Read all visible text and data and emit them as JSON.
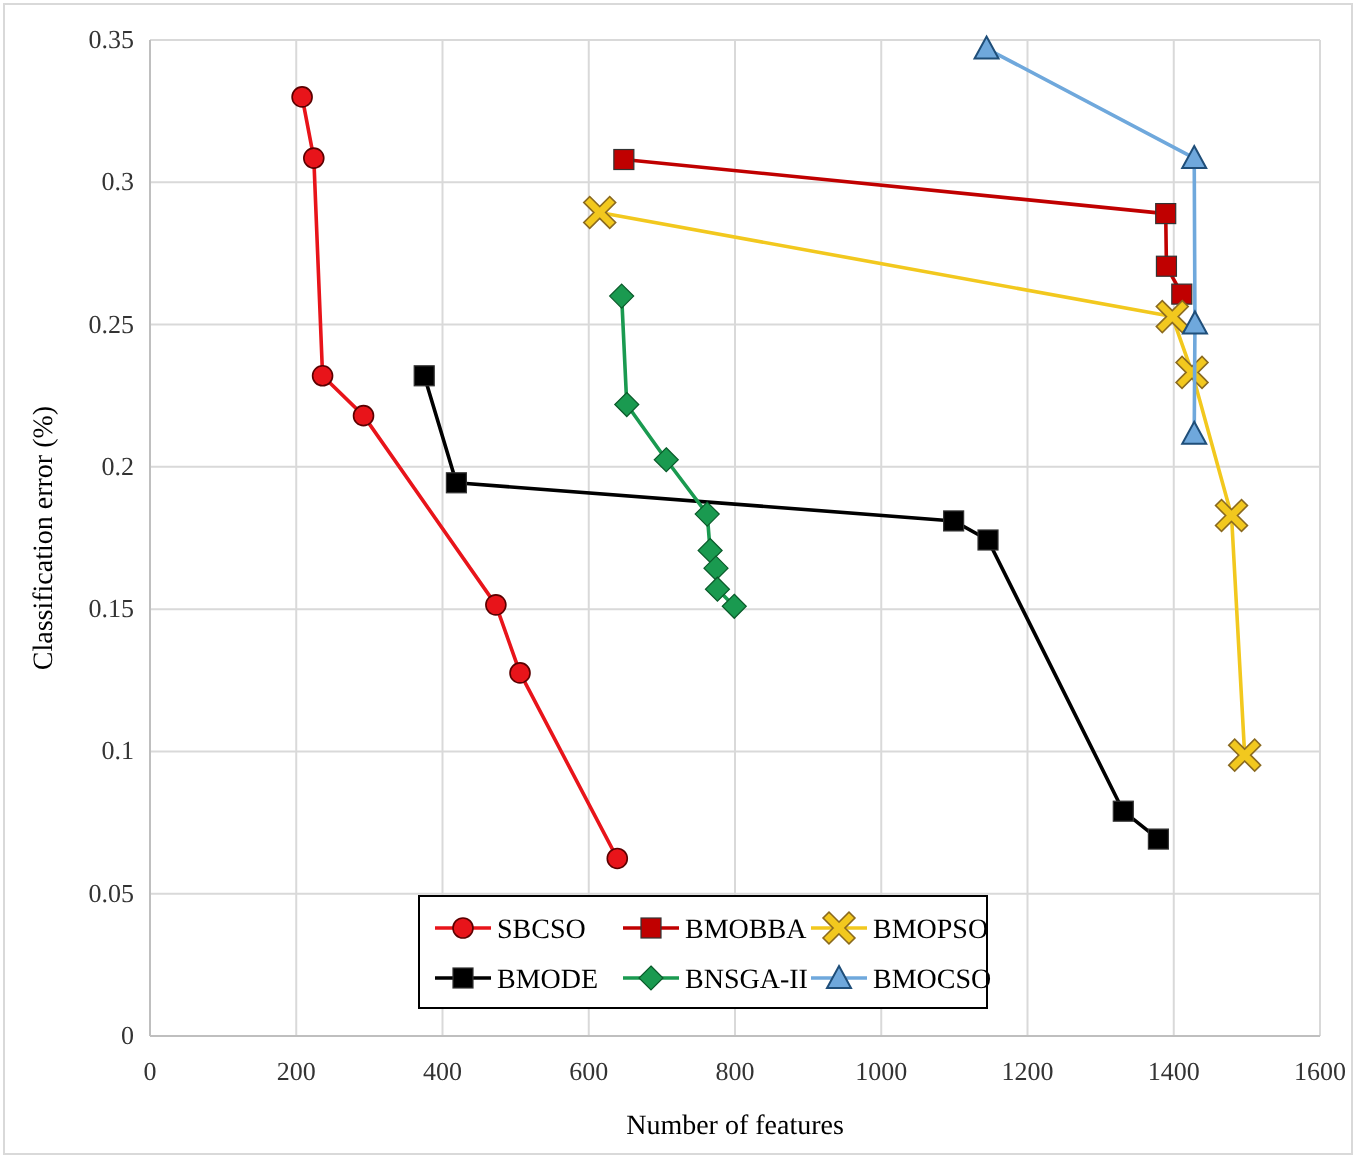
{
  "chart_data": {
    "type": "line",
    "xlabel": "Number of features",
    "ylabel": "Classification error (%)",
    "xlim": [
      0,
      1600
    ],
    "xticks": [
      0,
      200,
      400,
      600,
      800,
      1000,
      1200,
      1400,
      1600
    ],
    "ylim": [
      0,
      0.35
    ],
    "yticks": [
      0,
      0.05,
      0.1,
      0.15,
      0.2,
      0.25,
      0.3,
      0.35
    ],
    "grid": true,
    "legend": "bottom",
    "line_style": "solid",
    "series": [
      {
        "name": "SBCSO",
        "color": "#e8141a",
        "marker": "circle",
        "x": [
          208,
          224,
          236,
          292,
          473,
          506,
          639
        ],
        "values": [
          0.33,
          0.3085,
          0.232,
          0.218,
          0.1515,
          0.1276,
          0.0624
        ]
      },
      {
        "name": "BMOBBA",
        "color": "#c00000",
        "marker": "square",
        "x": [
          648,
          1389,
          1390,
          1411
        ],
        "values": [
          0.308,
          0.289,
          0.2705,
          0.2607
        ]
      },
      {
        "name": "BMOPSO",
        "color": "#f2c81e",
        "marker": "cross",
        "x": [
          615,
          1398,
          1425,
          1479,
          1497
        ],
        "values": [
          0.2894,
          0.2528,
          0.2332,
          0.1829,
          0.0987
        ]
      },
      {
        "name": "BMODE",
        "color": "#000000",
        "marker": "square",
        "x": [
          375,
          419,
          1099,
          1146,
          1331,
          1379
        ],
        "values": [
          0.232,
          0.1944,
          0.181,
          0.1743,
          0.079,
          0.0692
        ]
      },
      {
        "name": "BNSGA-II",
        "color": "#1a9a50",
        "marker": "diamond",
        "x": [
          645,
          652,
          706,
          762,
          766,
          774,
          776,
          799
        ],
        "values": [
          0.26,
          0.2219,
          0.2025,
          0.1834,
          0.1706,
          0.1644,
          0.157,
          0.151
        ]
      },
      {
        "name": "BMOCSO",
        "color": "#6fa8dc",
        "marker": "triangle",
        "x": [
          1144,
          1428,
          1429,
          1428
        ],
        "values": [
          0.347,
          0.3085,
          0.2504,
          0.2116
        ]
      }
    ]
  }
}
